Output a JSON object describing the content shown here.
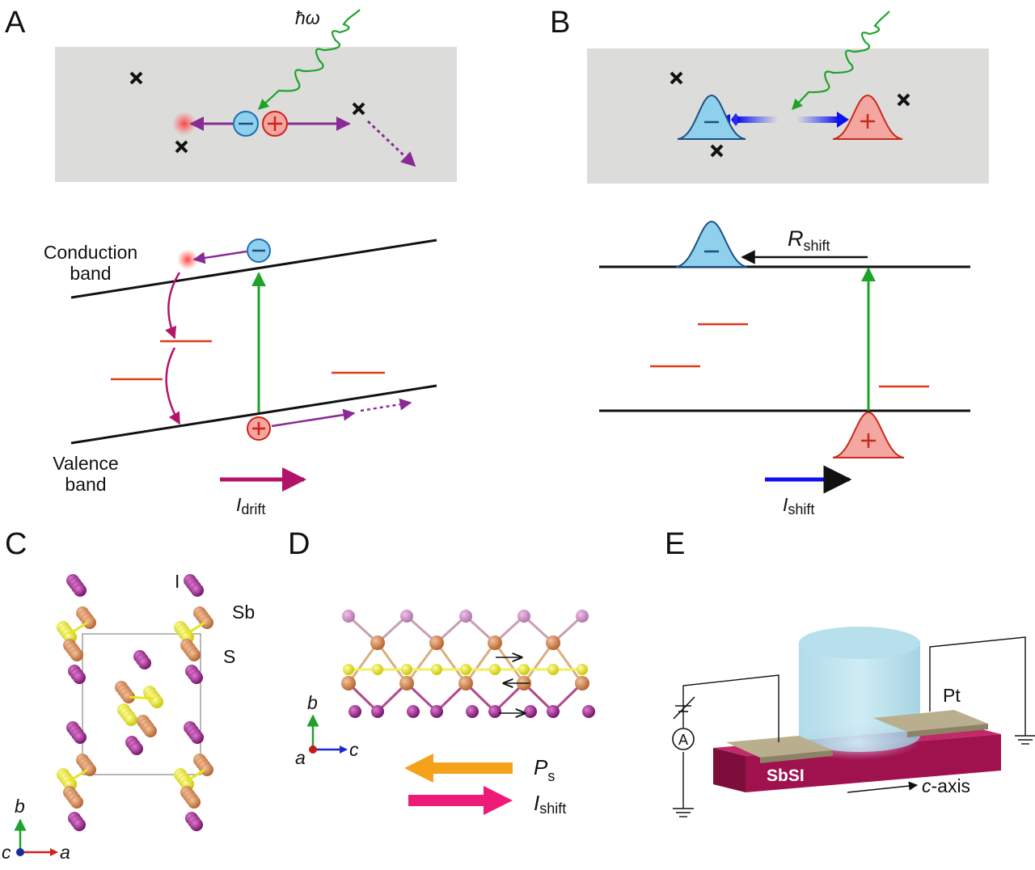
{
  "panel_letters": {
    "a": "A",
    "b": "B",
    "c": "C",
    "d": "D",
    "e": "E"
  },
  "panel_a": {
    "photon": "ħω",
    "conduction_band": [
      "Conduction",
      "band"
    ],
    "valence_band": [
      "Valence",
      "band"
    ],
    "current_symbol": "I",
    "current_sub": "drift",
    "electron_sign": "−",
    "hole_sign": "+"
  },
  "panel_b": {
    "shift_symbol": "R",
    "shift_sub": "shift",
    "current_symbol": "I",
    "current_sub": "shift",
    "electron_sign": "−",
    "hole_sign": "+"
  },
  "panel_c": {
    "atoms": [
      "I",
      "Sb",
      "S"
    ],
    "axes": {
      "b": "b",
      "c": "c",
      "a": "a"
    }
  },
  "panel_d": {
    "axes": {
      "b": "b",
      "a": "a",
      "c": "c"
    },
    "polarization_symbol": "P",
    "polarization_sub": "s",
    "current_symbol": "I",
    "current_sub": "shift"
  },
  "panel_e": {
    "electrode": "Pt",
    "crystal": "SbSI",
    "axis_italic": "c",
    "axis_rest": "-axis",
    "ammeter": "A"
  },
  "colors": {
    "gray_box": "#dcdcda",
    "purple_arrow": "#8a2a96",
    "magenta_arrow": "#b3146a",
    "green_arrow": "#1ea22a",
    "blue_arrow": "#1111ee",
    "trap_level": "#e03a1a",
    "electron_fill": "#8fd0ec",
    "hole_fill": "#f4a6a0",
    "orange_arrow": "#f5a21a",
    "pink_arrow": "#ee1a78",
    "iodine": "#8b1a7e",
    "antimony": "#d08050",
    "sulfur": "#e6e61a",
    "sbsi_crystal": "#a0124e"
  }
}
